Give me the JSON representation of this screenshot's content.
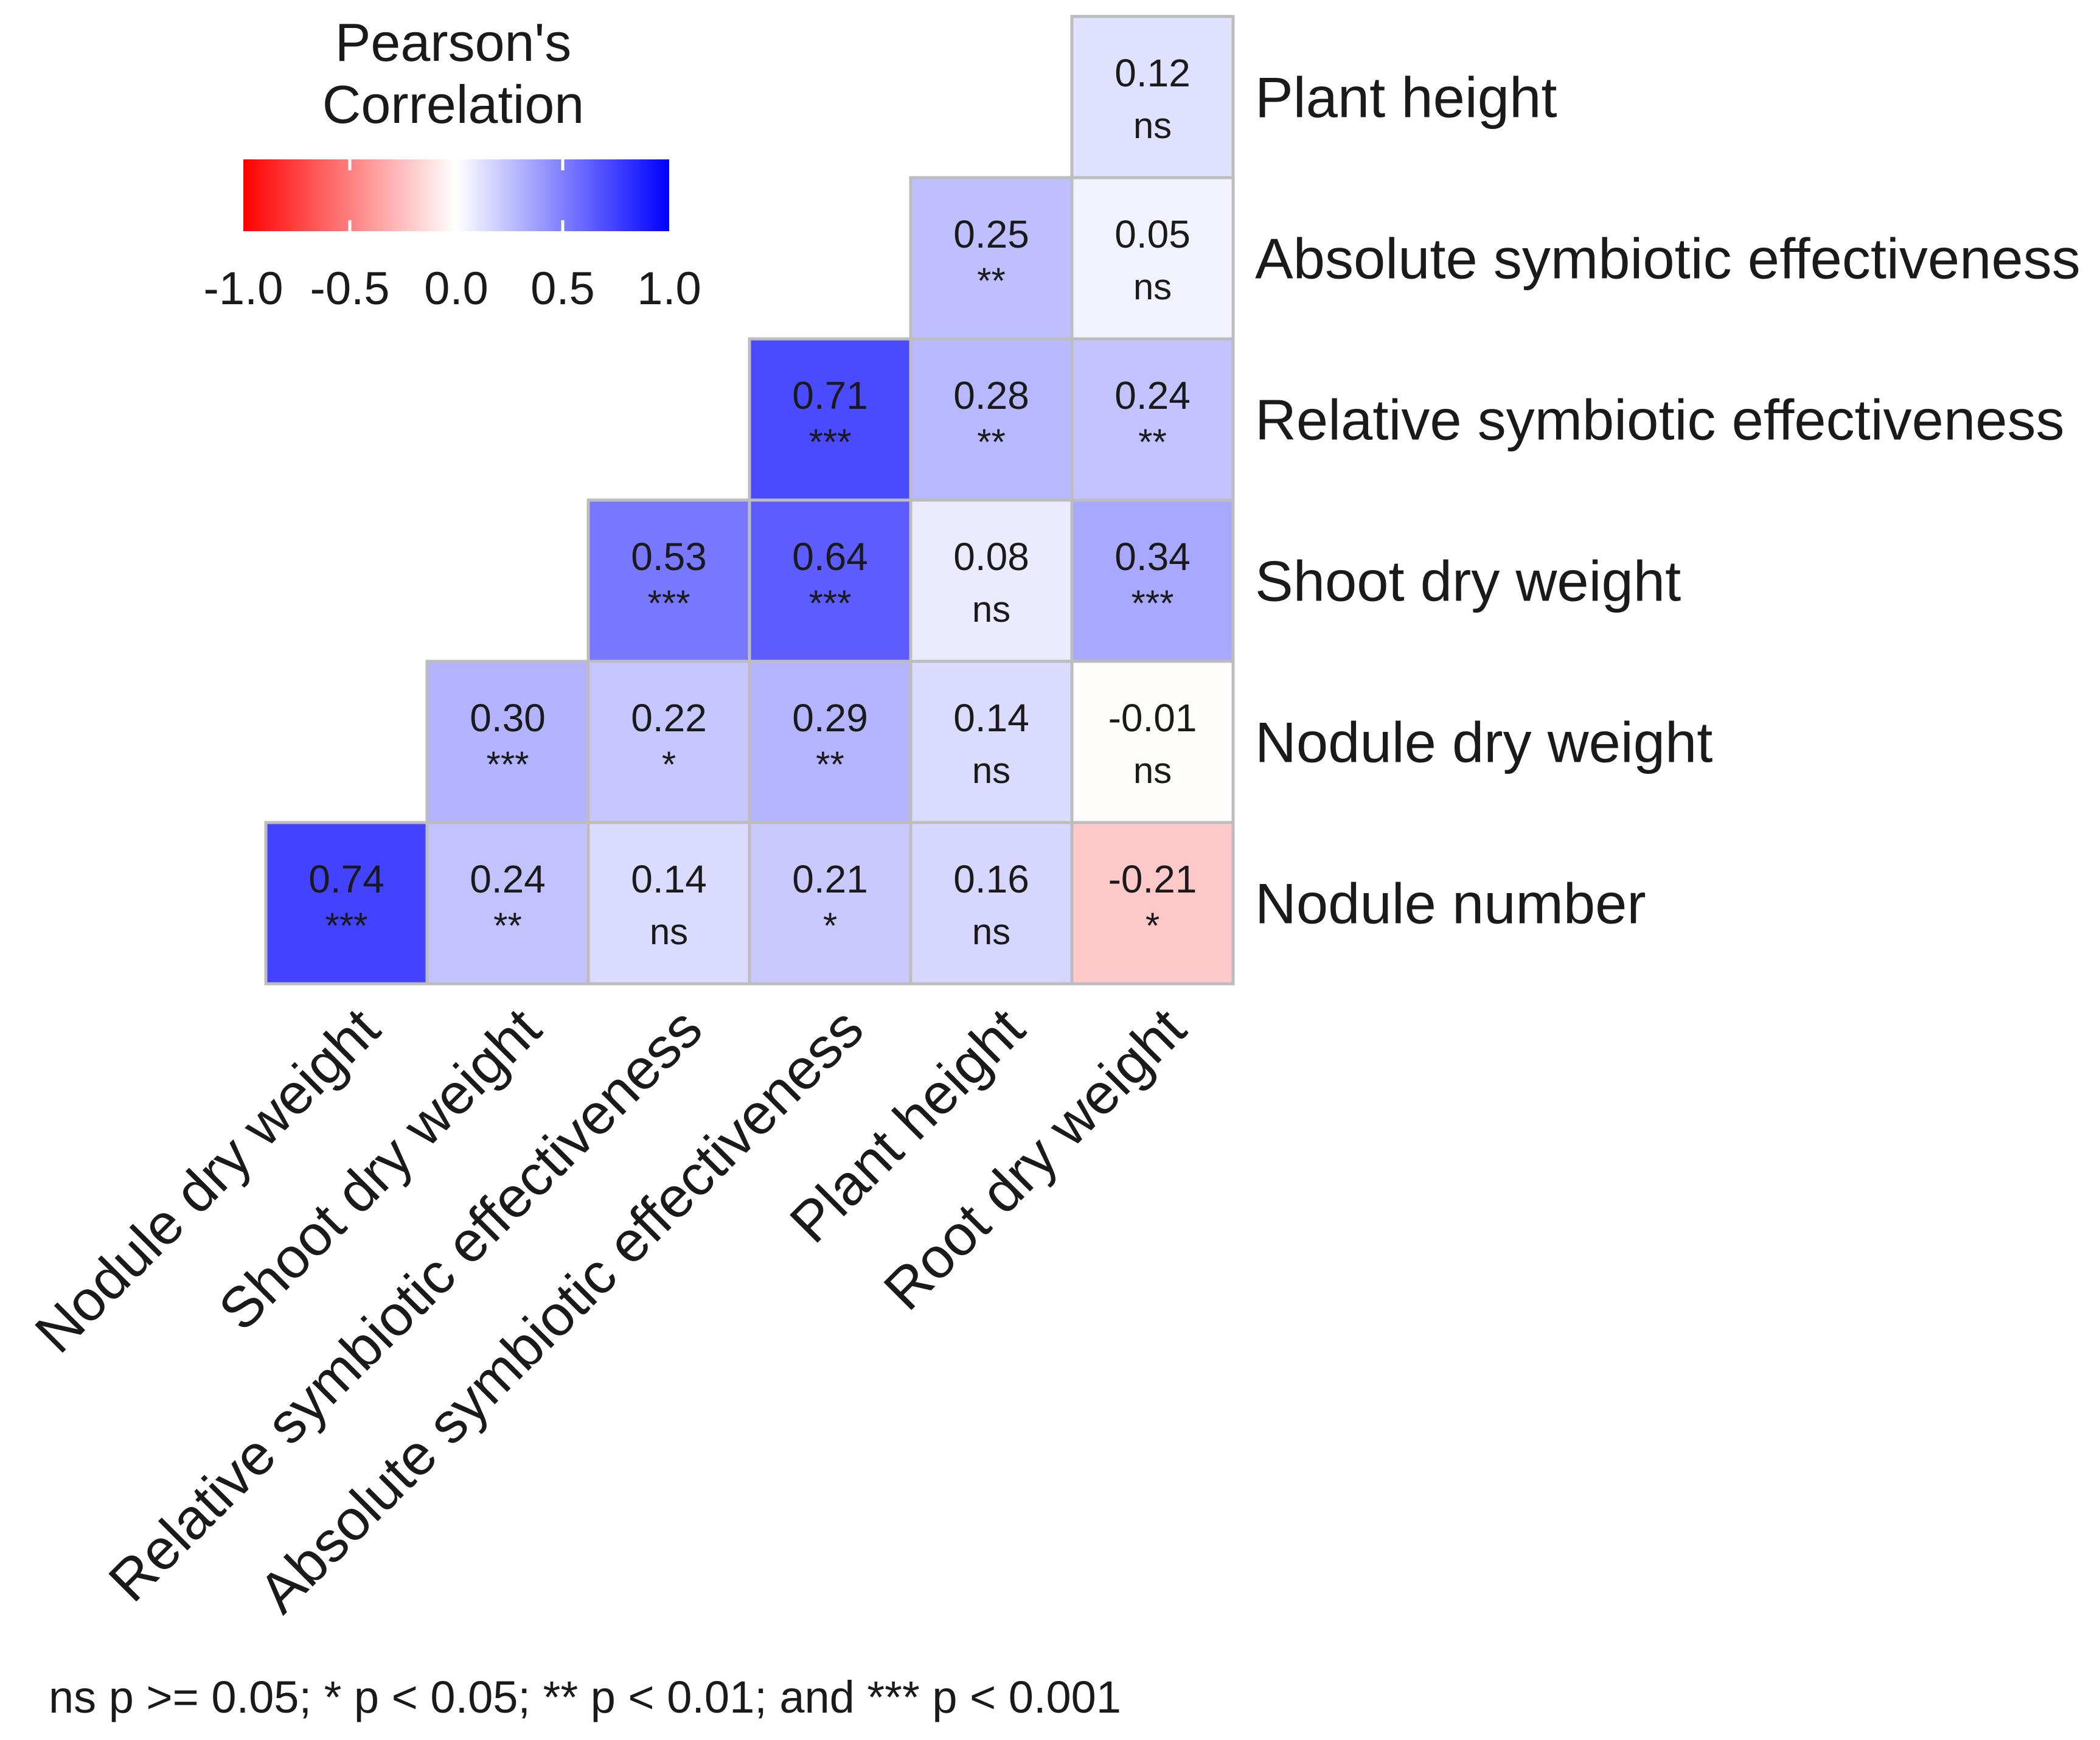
{
  "chart_data": {
    "type": "heatmap",
    "subtype": "lower-triangle correlation matrix",
    "legend": {
      "title_line1": "Pearson's",
      "title_line2": "Correlation",
      "range": [
        -1.0,
        1.0
      ],
      "ticks": [
        -1.0,
        -0.5,
        0.0,
        0.5,
        1.0
      ],
      "tick_labels": [
        "-1.0",
        "-0.5",
        "0.0",
        "0.5",
        "1.0"
      ],
      "low_color": "#ff0000",
      "mid_color": "#ffffff",
      "high_color": "#0000ff"
    },
    "row_labels": [
      "Plant height",
      "Absolute symbiotic effectiveness",
      "Relative symbiotic effectiveness",
      "Shoot dry weight",
      "Nodule dry weight",
      "Nodule number"
    ],
    "column_labels": [
      "Nodule dry weight",
      "Shoot dry weight",
      "Relative symbiotic effectiveness",
      "Absolute symbiotic effectiveness",
      "Plant height",
      "Root dry weight"
    ],
    "cells": [
      {
        "row": 0,
        "col": 5,
        "value": 0.12,
        "label": "0.12",
        "sig": "ns"
      },
      {
        "row": 1,
        "col": 4,
        "value": 0.25,
        "label": "0.25",
        "sig": "**"
      },
      {
        "row": 1,
        "col": 5,
        "value": 0.05,
        "label": "0.05",
        "sig": "ns"
      },
      {
        "row": 2,
        "col": 3,
        "value": 0.71,
        "label": "0.71",
        "sig": "***"
      },
      {
        "row": 2,
        "col": 4,
        "value": 0.28,
        "label": "0.28",
        "sig": "**"
      },
      {
        "row": 2,
        "col": 5,
        "value": 0.24,
        "label": "0.24",
        "sig": "**"
      },
      {
        "row": 3,
        "col": 2,
        "value": 0.53,
        "label": "0.53",
        "sig": "***"
      },
      {
        "row": 3,
        "col": 3,
        "value": 0.64,
        "label": "0.64",
        "sig": "***"
      },
      {
        "row": 3,
        "col": 4,
        "value": 0.08,
        "label": "0.08",
        "sig": "ns"
      },
      {
        "row": 3,
        "col": 5,
        "value": 0.34,
        "label": "0.34",
        "sig": "***"
      },
      {
        "row": 4,
        "col": 1,
        "value": 0.3,
        "label": "0.30",
        "sig": "***"
      },
      {
        "row": 4,
        "col": 2,
        "value": 0.22,
        "label": "0.22",
        "sig": "*"
      },
      {
        "row": 4,
        "col": 3,
        "value": 0.29,
        "label": "0.29",
        "sig": "**"
      },
      {
        "row": 4,
        "col": 4,
        "value": 0.14,
        "label": "0.14",
        "sig": "ns"
      },
      {
        "row": 4,
        "col": 5,
        "value": -0.01,
        "label": "-0.01",
        "sig": "ns"
      },
      {
        "row": 5,
        "col": 0,
        "value": 0.74,
        "label": "0.74",
        "sig": "***"
      },
      {
        "row": 5,
        "col": 1,
        "value": 0.24,
        "label": "0.24",
        "sig": "**"
      },
      {
        "row": 5,
        "col": 2,
        "value": 0.14,
        "label": "0.14",
        "sig": "ns"
      },
      {
        "row": 5,
        "col": 3,
        "value": 0.21,
        "label": "0.21",
        "sig": "*"
      },
      {
        "row": 5,
        "col": 4,
        "value": 0.16,
        "label": "0.16",
        "sig": "ns"
      },
      {
        "row": 5,
        "col": 5,
        "value": -0.21,
        "label": "-0.21",
        "sig": "*"
      }
    ],
    "footnote": "ns p >= 0.05; * p < 0.05; ** p < 0.01; and *** p < 0.001"
  }
}
